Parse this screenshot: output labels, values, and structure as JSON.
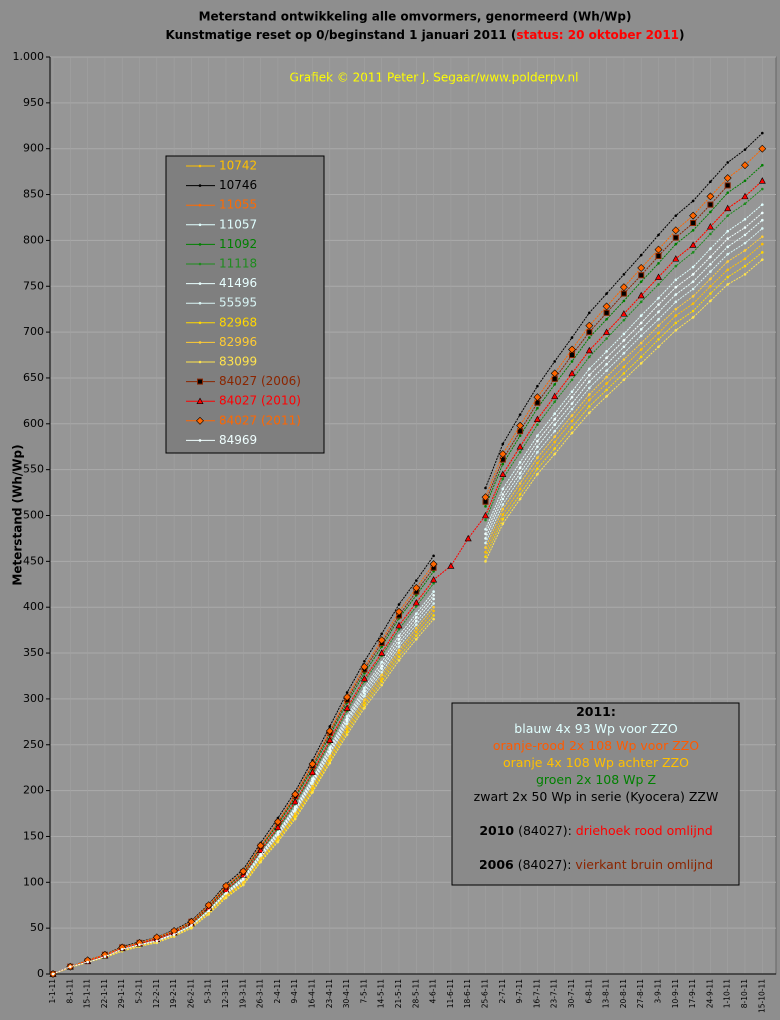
{
  "chart_data": {
    "type": "line",
    "title": "Meterstand ontwikkeling alle omvormers, genormeerd (Wh/Wp)",
    "subtitle": "Kunstmatige reset op 0/beginstand 1 januari 2011 (",
    "status": "status: 20 oktober 2011",
    "subtitle_end": ")",
    "credit": "Grafiek © 2011 Peter J. Segaar/www.polderpv.nl",
    "y_label": "Meterstand (Wh/Wp)",
    "ylim": [
      0,
      1000
    ],
    "yticks": [
      0,
      50,
      100,
      150,
      200,
      250,
      300,
      350,
      400,
      450,
      500,
      550,
      600,
      650,
      700,
      750,
      800,
      850,
      900,
      950,
      {
        "value": 1000,
        "label": "1.000"
      }
    ],
    "grid": true,
    "categories": [
      "1-1-11",
      "8-1-11",
      "15-1-11",
      "22-1-11",
      "29-1-11",
      "5-2-11",
      "12-2-11",
      "19-2-11",
      "26-2-11",
      "5-3-11",
      "12-3-11",
      "19-3-11",
      "26-3-11",
      "2-4-11",
      "9-4-11",
      "16-4-11",
      "23-4-11",
      "30-4-11",
      "7-5-11",
      "14-5-11",
      "21-5-11",
      "28-5-11",
      "4-6-11",
      "11-6-11",
      "18-6-11",
      "25-6-11",
      "2-7-11",
      "9-7-11",
      "16-7-11",
      "23-7-11",
      "30-7-11",
      "6-8-11",
      "13-8-11",
      "20-8-11",
      "27-8-11",
      "3-9-11",
      "10-9-11",
      "17-9-11",
      "24-9-11",
      "1-10-11",
      "8-10-11",
      "15-10-11"
    ],
    "series": [
      {
        "name": "10742",
        "color": "#ffc000",
        "marker": "dot",
        "values": [
          0,
          7,
          13,
          18,
          26,
          30,
          35,
          41,
          51,
          66,
          85,
          99,
          124,
          147,
          173,
          202,
          235,
          267,
          296,
          322,
          350,
          373,
          396,
          null,
          null,
          460,
          501,
          529,
          557,
          580,
          603,
          626,
          644,
          662,
          681,
          699,
          718,
          731,
          750,
          768,
          780,
          796
        ]
      },
      {
        "name": "10746",
        "color": "#000000",
        "marker": "dot",
        "values": [
          0,
          8,
          15,
          21,
          30,
          35,
          40,
          48,
          58,
          76,
          98,
          114,
          143,
          170,
          199,
          233,
          270,
          307,
          341,
          371,
          403,
          429,
          456,
          null,
          null,
          530,
          578,
          610,
          641,
          668,
          694,
          721,
          742,
          763,
          784,
          806,
          827,
          843,
          864,
          885,
          899,
          917
        ]
      },
      {
        "name": "11055",
        "color": "#ff6a00",
        "marker": "dot",
        "values": [
          0,
          8,
          14,
          20,
          28,
          33,
          38,
          45,
          55,
          72,
          92,
          108,
          135,
          160,
          188,
          220,
          255,
          290,
          322,
          350,
          380,
          405,
          430,
          null,
          null,
          500,
          545,
          575,
          605,
          630,
          655,
          680,
          700,
          720,
          740,
          760,
          780,
          795,
          815,
          835,
          848,
          865
        ]
      },
      {
        "name": "11057",
        "color": "#e0ffff",
        "marker": "dot",
        "values": [
          0,
          8,
          14,
          19,
          27,
          32,
          37,
          44,
          53,
          70,
          89,
          105,
          131,
          155,
          182,
          213,
          247,
          281,
          312,
          340,
          369,
          393,
          417,
          null,
          null,
          485,
          529,
          558,
          587,
          611,
          635,
          660,
          679,
          698,
          718,
          737,
          757,
          771,
          791,
          810,
          823,
          839
        ]
      },
      {
        "name": "11092",
        "color": "#008000",
        "marker": "dot",
        "values": [
          0,
          8,
          14,
          20,
          29,
          34,
          39,
          46,
          56,
          73,
          94,
          110,
          138,
          163,
          192,
          224,
          260,
          296,
          328,
          357,
          388,
          413,
          439,
          null,
          null,
          510,
          556,
          587,
          617,
          643,
          668,
          694,
          714,
          734,
          755,
          775,
          796,
          811,
          831,
          852,
          865,
          882
        ]
      },
      {
        "name": "11118",
        "color": "#1e8c1e",
        "marker": "dot",
        "values": [
          0,
          8,
          14,
          20,
          28,
          33,
          38,
          45,
          54,
          71,
          91,
          107,
          134,
          158,
          186,
          218,
          252,
          287,
          319,
          347,
          376,
          401,
          426,
          null,
          null,
          495,
          540,
          569,
          599,
          624,
          648,
          673,
          693,
          713,
          733,
          752,
          772,
          787,
          807,
          827,
          840,
          856
        ]
      },
      {
        "name": "41496",
        "color": "#e8ffff",
        "marker": "dot",
        "values": [
          0,
          8,
          13,
          19,
          27,
          31,
          36,
          43,
          52,
          68,
          87,
          103,
          128,
          152,
          179,
          209,
          242,
          276,
          306,
          333,
          361,
          385,
          409,
          null,
          null,
          475,
          518,
          546,
          575,
          599,
          622,
          646,
          665,
          684,
          703,
          722,
          741,
          755,
          774,
          793,
          806,
          822
        ]
      },
      {
        "name": "55595",
        "color": "#d8f4f4",
        "marker": "dot",
        "values": [
          0,
          8,
          13,
          19,
          26,
          31,
          36,
          42,
          52,
          68,
          86,
          102,
          127,
          150,
          177,
          207,
          240,
          273,
          303,
          329,
          357,
          381,
          404,
          null,
          null,
          470,
          512,
          541,
          569,
          592,
          616,
          639,
          658,
          677,
          696,
          714,
          733,
          747,
          766,
          785,
          797,
          813
        ]
      },
      {
        "name": "82968",
        "color": "#ffd700",
        "marker": "dot",
        "values": [
          0,
          7,
          13,
          18,
          25,
          30,
          35,
          41,
          50,
          66,
          84,
          98,
          123,
          146,
          171,
          200,
          232,
          264,
          293,
          319,
          346,
          369,
          391,
          null,
          null,
          455,
          496,
          523,
          551,
          573,
          596,
          619,
          637,
          655,
          673,
          692,
          710,
          723,
          742,
          760,
          772,
          787
        ]
      },
      {
        "name": "82996",
        "color": "#ffcc33",
        "marker": "dot",
        "values": [
          0,
          7,
          13,
          19,
          26,
          31,
          35,
          42,
          51,
          67,
          86,
          100,
          126,
          149,
          175,
          205,
          237,
          270,
          299,
          326,
          353,
          377,
          400,
          null,
          null,
          465,
          507,
          535,
          563,
          586,
          609,
          632,
          651,
          670,
          688,
          707,
          725,
          739,
          758,
          777,
          789,
          804
        ]
      },
      {
        "name": "83099",
        "color": "#ffe34d",
        "marker": "dot",
        "values": [
          0,
          7,
          13,
          18,
          25,
          30,
          34,
          41,
          50,
          65,
          83,
          97,
          122,
          144,
          169,
          198,
          230,
          261,
          290,
          315,
          342,
          365,
          387,
          null,
          null,
          450,
          491,
          518,
          545,
          567,
          590,
          612,
          630,
          648,
          666,
          684,
          702,
          716,
          734,
          752,
          763,
          779
        ]
      },
      {
        "name": "84027 (2006)",
        "color": "#8b2500",
        "marker": "square",
        "values": [
          0,
          8,
          14,
          21,
          29,
          34,
          39,
          46,
          57,
          74,
          95,
          111,
          139,
          165,
          194,
          227,
          263,
          299,
          332,
          361,
          391,
          417,
          443,
          null,
          null,
          515,
          561,
          592,
          623,
          649,
          675,
          700,
          721,
          742,
          762,
          783,
          803,
          819,
          839,
          860,
          null,
          null
        ]
      },
      {
        "name": "84027 (2010)",
        "color": "#ff0000",
        "marker": "triangle",
        "values": [
          0,
          8,
          14,
          20,
          28,
          33,
          38,
          45,
          55,
          72,
          92,
          108,
          135,
          160,
          188,
          220,
          255,
          290,
          322,
          350,
          380,
          405,
          430,
          445,
          475,
          500,
          545,
          575,
          605,
          630,
          655,
          680,
          700,
          720,
          740,
          760,
          780,
          795,
          815,
          835,
          848,
          865
        ]
      },
      {
        "name": "84027 (2011)",
        "color": "#ff6600",
        "marker": "diamond",
        "values": [
          0,
          8,
          15,
          21,
          29,
          34,
          40,
          47,
          57,
          75,
          96,
          112,
          140,
          166,
          196,
          229,
          265,
          302,
          335,
          364,
          395,
          421,
          447,
          null,
          null,
          520,
          567,
          598,
          629,
          655,
          681,
          707,
          728,
          749,
          770,
          790,
          811,
          827,
          848,
          868,
          882,
          900
        ]
      },
      {
        "name": "84969",
        "color": "#f0ffff",
        "marker": "dot",
        "values": [
          0,
          8,
          13,
          19,
          27,
          32,
          36,
          43,
          53,
          69,
          88,
          104,
          130,
          154,
          180,
          211,
          245,
          278,
          309,
          336,
          365,
          389,
          413,
          null,
          null,
          480,
          523,
          552,
          581,
          605,
          629,
          653,
          672,
          691,
          710,
          730,
          749,
          763,
          782,
          802,
          814,
          830
        ]
      }
    ],
    "annotation": [
      [
        {
          "text": "2011:",
          "color": "#000000",
          "bold": true
        }
      ],
      [
        {
          "text": "blauw 4x 93 Wp voor ZZO",
          "color": "#e0ffff",
          "bold": false
        }
      ],
      [
        {
          "text": "oranje-rood 2x 108 Wp voor ZZO",
          "color": "#ff5a00",
          "bold": false
        }
      ],
      [
        {
          "text": "oranje 4x 108 Wp achter ZZO",
          "color": "#ffc000",
          "bold": false
        }
      ],
      [
        {
          "text": "groen 2x 108 Wp  Z",
          "color": "#008000",
          "bold": false
        }
      ],
      [
        {
          "text": "zwart 2x 50 Wp in serie (Kyocera) ZZW",
          "color": "#000000",
          "bold": false
        }
      ],
      [
        {
          "text": "2010",
          "color": "#000000",
          "bold": true
        },
        {
          "text": " (84027): ",
          "color": "#000000",
          "bold": false
        },
        {
          "text": "driehoek rood omlijnd",
          "color": "#ff0000",
          "bold": false
        }
      ],
      [
        {
          "text": "2006",
          "color": "#000000",
          "bold": true
        },
        {
          "text": " (84027): ",
          "color": "#000000",
          "bold": false
        },
        {
          "text": "vierkant bruin omlijnd",
          "color": "#8b2500",
          "bold": false
        }
      ]
    ]
  }
}
